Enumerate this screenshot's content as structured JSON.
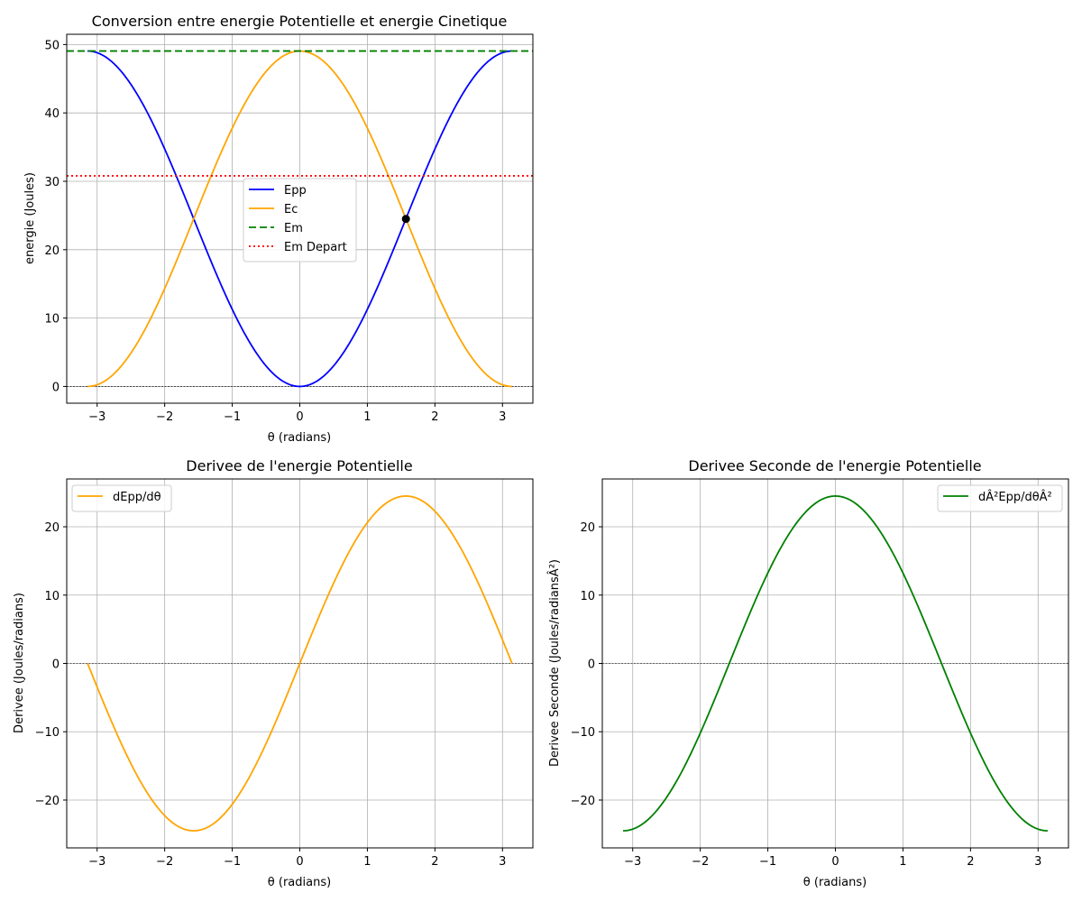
{
  "chart_data": [
    {
      "type": "line",
      "title": "Conversion entre energie Potentielle et energie Cinetique",
      "xlabel": "θ (radians)",
      "ylabel": "energie (Joules)",
      "xlim": [
        -3.45,
        3.45
      ],
      "ylim": [
        -2.45,
        51.5
      ],
      "xticks": [
        -3,
        -2,
        -1,
        0,
        1,
        2,
        3
      ],
      "yticks": [
        0,
        10,
        20,
        30,
        40,
        50
      ],
      "grid": true,
      "legend_position": "center",
      "series": [
        {
          "name": "Epp",
          "style": "solid",
          "color": "#0000ff",
          "function": "49.05*(1-cos(x))/2",
          "x_range": [
            -3.1416,
            3.1416
          ]
        },
        {
          "name": "Ec",
          "style": "solid",
          "color": "#ffa500",
          "function": "49.05-49.05*(1-cos(x))/2",
          "x_range": [
            -3.1416,
            3.1416
          ]
        },
        {
          "name": "Em",
          "style": "dashed",
          "color": "#008000",
          "hline": 49.05
        },
        {
          "name": "Em Depart",
          "style": "dotted",
          "color": "#ff0000",
          "hline": 30.8
        }
      ],
      "markers": [
        {
          "x": 1.5708,
          "y": 24.5,
          "color": "#000000"
        }
      ],
      "reference_hline": 0
    },
    {
      "type": "line",
      "title": "Derivee de l'energie Potentielle",
      "xlabel": "θ (radians)",
      "ylabel": "Derivee (Joules/radians)",
      "xlim": [
        -3.45,
        3.45
      ],
      "ylim": [
        -27,
        27
      ],
      "xticks": [
        -3,
        -2,
        -1,
        0,
        1,
        2,
        3
      ],
      "yticks": [
        -20,
        -10,
        0,
        10,
        20
      ],
      "grid": true,
      "legend_position": "upper left",
      "series": [
        {
          "name": "dEpp/dθ",
          "style": "solid",
          "color": "#ffa500",
          "function": "24.5*sin(x)",
          "x_range": [
            -3.1416,
            3.1416
          ]
        }
      ],
      "reference_hline": 0
    },
    {
      "type": "line",
      "title": "Derivee Seconde de l'energie Potentielle",
      "xlabel": "θ (radians)",
      "ylabel": "Derivee Seconde (Joules/radiansÂ²)",
      "xlim": [
        -3.45,
        3.45
      ],
      "ylim": [
        -27,
        27
      ],
      "xticks": [
        -3,
        -2,
        -1,
        0,
        1,
        2,
        3
      ],
      "yticks": [
        -20,
        -10,
        0,
        10,
        20
      ],
      "grid": true,
      "legend_position": "upper right",
      "series": [
        {
          "name": "dÂ²Epp/dθÂ²",
          "style": "solid",
          "color": "#008000",
          "function": "24.5*cos(x)",
          "x_range": [
            -3.1416,
            3.1416
          ]
        }
      ],
      "reference_hline": 0
    }
  ]
}
